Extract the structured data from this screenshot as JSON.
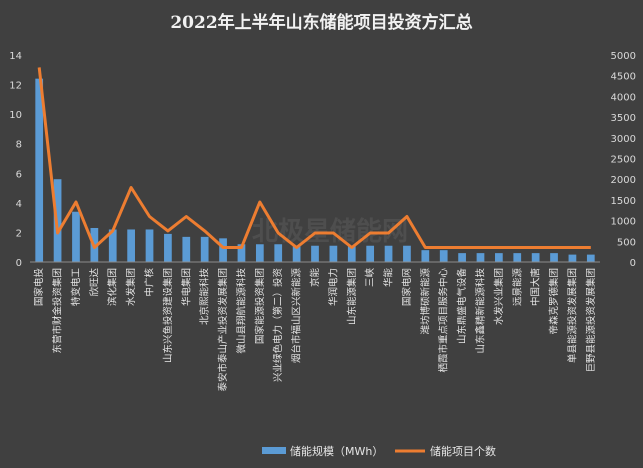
{
  "chart_data": {
    "type": "bar+line",
    "title": "2022年上半年山东储能项目投资方汇总",
    "watermark": "北极星储能网",
    "categories": [
      "国家电投",
      "东营市财金投资集团",
      "特变电工",
      "欣旺达",
      "滨化集团",
      "水发集团",
      "中广核",
      "山东兴鱼投资建设集团",
      "华电集团",
      "北京熙能科技",
      "泰安市泰山产业投资发展集团",
      "微山县翔航能源科技",
      "国家能源投资集团",
      "兴业绿色电力（第二）投资",
      "烟台市福山区兴新能源",
      "京能",
      "华润电力",
      "山东能源集团",
      "三峡",
      "华能",
      "国家电网",
      "潍坊博硕新能源",
      "栖霞市重点项目服务中心",
      "山东鼎盛电气设备",
      "山东鑫精新能源科技",
      "水发兴业集团",
      "远景能源",
      "中国大唐",
      "帝森克罗德集团",
      "单县能源投资发展集团",
      "巨野县能源投资发展集团"
    ],
    "series": [
      {
        "name": "储能规模（MWh）",
        "type": "bar",
        "axis": "left",
        "values": [
          12.4,
          5.6,
          3.4,
          2.3,
          2.2,
          2.2,
          2.2,
          1.9,
          1.7,
          1.7,
          1.6,
          1.2,
          1.2,
          1.2,
          1.1,
          1.1,
          1.1,
          1.1,
          1.1,
          1.1,
          1.1,
          0.8,
          0.8,
          0.6,
          0.6,
          0.6,
          0.6,
          0.6,
          0.6,
          0.5,
          0.5
        ]
      },
      {
        "name": "储能项目个数",
        "type": "line",
        "axis": "right",
        "values": [
          4700,
          700,
          1450,
          350,
          750,
          1800,
          1100,
          750,
          1100,
          750,
          350,
          350,
          1450,
          700,
          350,
          700,
          700,
          350,
          700,
          700,
          1100,
          350,
          350,
          350,
          350,
          350,
          350,
          350,
          350,
          350,
          350
        ]
      }
    ],
    "y_left": {
      "min": 0,
      "max": 14,
      "ticks": [
        0,
        2,
        4,
        6,
        8,
        10,
        12,
        14
      ]
    },
    "y_right": {
      "min": 0,
      "max": 5000,
      "ticks": [
        0,
        500,
        1000,
        1500,
        2000,
        2500,
        3000,
        3500,
        4000,
        4500,
        5000
      ]
    },
    "grid": false,
    "legend_position": "bottom",
    "colors": {
      "bar": "#5b9bd5",
      "line": "#ed7d31"
    }
  }
}
